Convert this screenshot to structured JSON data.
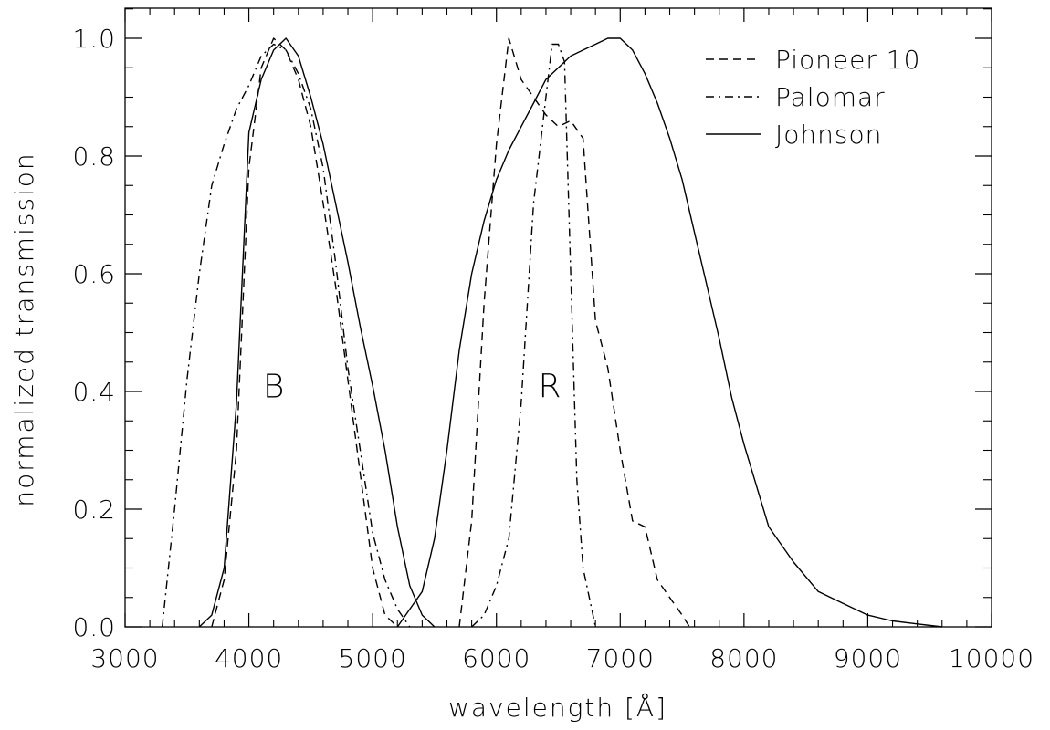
{
  "chart_data": {
    "type": "line",
    "title": "",
    "xlabel": "wavelength [Å]",
    "ylabel": "normalized transmission",
    "xlim": [
      3000,
      10000
    ],
    "ylim": [
      0.0,
      1.0
    ],
    "x_ticks": [
      3000,
      4000,
      5000,
      6000,
      7000,
      8000,
      9000,
      10000
    ],
    "x_tick_labels": [
      "3000",
      "4000",
      "5000",
      "6000",
      "7000",
      "8000",
      "9000",
      "10000"
    ],
    "y_ticks": [
      0.0,
      0.2,
      0.4,
      0.6,
      0.8,
      1.0
    ],
    "y_tick_labels": [
      "0.0",
      "0.2",
      "0.4",
      "0.6",
      "0.8",
      "1.0"
    ],
    "grid": false,
    "legend_position": "top-right",
    "annotations": [
      {
        "text": "B",
        "x": 4200,
        "y": 0.41
      },
      {
        "text": "R",
        "x": 6430,
        "y": 0.41
      }
    ],
    "series": [
      {
        "name": "Pioneer 10",
        "line_style": "dashed",
        "segments": [
          [
            [
              3700,
              0.0
            ],
            [
              3800,
              0.08
            ],
            [
              3900,
              0.3
            ],
            [
              4000,
              0.78
            ],
            [
              4100,
              0.95
            ],
            [
              4200,
              1.0
            ],
            [
              4300,
              0.98
            ],
            [
              4400,
              0.93
            ],
            [
              4500,
              0.85
            ],
            [
              4600,
              0.72
            ],
            [
              4700,
              0.58
            ],
            [
              4800,
              0.42
            ],
            [
              4900,
              0.26
            ],
            [
              5000,
              0.1
            ],
            [
              5100,
              0.02
            ],
            [
              5200,
              0.0
            ]
          ],
          [
            [
              5700,
              0.0
            ],
            [
              5800,
              0.18
            ],
            [
              5900,
              0.55
            ],
            [
              6000,
              0.82
            ],
            [
              6100,
              1.0
            ],
            [
              6200,
              0.93
            ],
            [
              6300,
              0.9
            ],
            [
              6400,
              0.87
            ],
            [
              6500,
              0.85
            ],
            [
              6600,
              0.86
            ],
            [
              6700,
              0.83
            ],
            [
              6800,
              0.52
            ],
            [
              6900,
              0.44
            ],
            [
              7000,
              0.3
            ],
            [
              7100,
              0.18
            ],
            [
              7200,
              0.17
            ],
            [
              7300,
              0.08
            ],
            [
              7400,
              0.05
            ],
            [
              7500,
              0.02
            ],
            [
              7560,
              0.0
            ]
          ]
        ]
      },
      {
        "name": "Palomar",
        "line_style": "dash-dot",
        "segments": [
          [
            [
              3300,
              0.0
            ],
            [
              3400,
              0.2
            ],
            [
              3500,
              0.42
            ],
            [
              3600,
              0.6
            ],
            [
              3700,
              0.75
            ],
            [
              3800,
              0.82
            ],
            [
              3900,
              0.88
            ],
            [
              4000,
              0.92
            ],
            [
              4100,
              0.97
            ],
            [
              4200,
              0.99
            ],
            [
              4300,
              0.98
            ],
            [
              4400,
              0.94
            ],
            [
              4500,
              0.88
            ],
            [
              4600,
              0.78
            ],
            [
              4700,
              0.62
            ],
            [
              4800,
              0.44
            ],
            [
              4900,
              0.3
            ],
            [
              5000,
              0.16
            ],
            [
              5100,
              0.08
            ],
            [
              5200,
              0.03
            ],
            [
              5300,
              0.0
            ]
          ],
          [
            [
              5800,
              0.0
            ],
            [
              5900,
              0.02
            ],
            [
              6000,
              0.07
            ],
            [
              6100,
              0.15
            ],
            [
              6200,
              0.38
            ],
            [
              6300,
              0.72
            ],
            [
              6400,
              0.9
            ],
            [
              6450,
              0.99
            ],
            [
              6500,
              0.99
            ],
            [
              6550,
              0.96
            ],
            [
              6600,
              0.6
            ],
            [
              6650,
              0.25
            ],
            [
              6700,
              0.1
            ],
            [
              6800,
              0.0
            ]
          ]
        ]
      },
      {
        "name": "Johnson",
        "line_style": "solid",
        "segments": [
          [
            [
              3600,
              0.0
            ],
            [
              3700,
              0.02
            ],
            [
              3800,
              0.1
            ],
            [
              3900,
              0.38
            ],
            [
              4000,
              0.84
            ],
            [
              4100,
              0.93
            ],
            [
              4200,
              0.98
            ],
            [
              4300,
              1.0
            ],
            [
              4400,
              0.97
            ],
            [
              4500,
              0.9
            ],
            [
              4600,
              0.82
            ],
            [
              4700,
              0.72
            ],
            [
              4800,
              0.62
            ],
            [
              4900,
              0.51
            ],
            [
              5000,
              0.41
            ],
            [
              5100,
              0.3
            ],
            [
              5200,
              0.17
            ],
            [
              5300,
              0.07
            ],
            [
              5400,
              0.02
            ],
            [
              5500,
              0.0
            ]
          ],
          [
            [
              5200,
              0.0
            ],
            [
              5300,
              0.03
            ],
            [
              5400,
              0.06
            ],
            [
              5500,
              0.15
            ],
            [
              5600,
              0.3
            ],
            [
              5700,
              0.47
            ],
            [
              5800,
              0.6
            ],
            [
              5900,
              0.69
            ],
            [
              6000,
              0.76
            ],
            [
              6100,
              0.81
            ],
            [
              6200,
              0.85
            ],
            [
              6300,
              0.89
            ],
            [
              6400,
              0.93
            ],
            [
              6500,
              0.95
            ],
            [
              6600,
              0.97
            ],
            [
              6700,
              0.98
            ],
            [
              6800,
              0.99
            ],
            [
              6900,
              1.0
            ],
            [
              7000,
              1.0
            ],
            [
              7100,
              0.98
            ],
            [
              7200,
              0.94
            ],
            [
              7300,
              0.89
            ],
            [
              7400,
              0.83
            ],
            [
              7500,
              0.76
            ],
            [
              7600,
              0.67
            ],
            [
              7700,
              0.58
            ],
            [
              7800,
              0.49
            ],
            [
              7900,
              0.39
            ],
            [
              8000,
              0.31
            ],
            [
              8200,
              0.17
            ],
            [
              8400,
              0.11
            ],
            [
              8600,
              0.06
            ],
            [
              8800,
              0.04
            ],
            [
              9000,
              0.02
            ],
            [
              9200,
              0.01
            ],
            [
              9400,
              0.005
            ],
            [
              9600,
              0.0
            ]
          ]
        ]
      }
    ]
  }
}
